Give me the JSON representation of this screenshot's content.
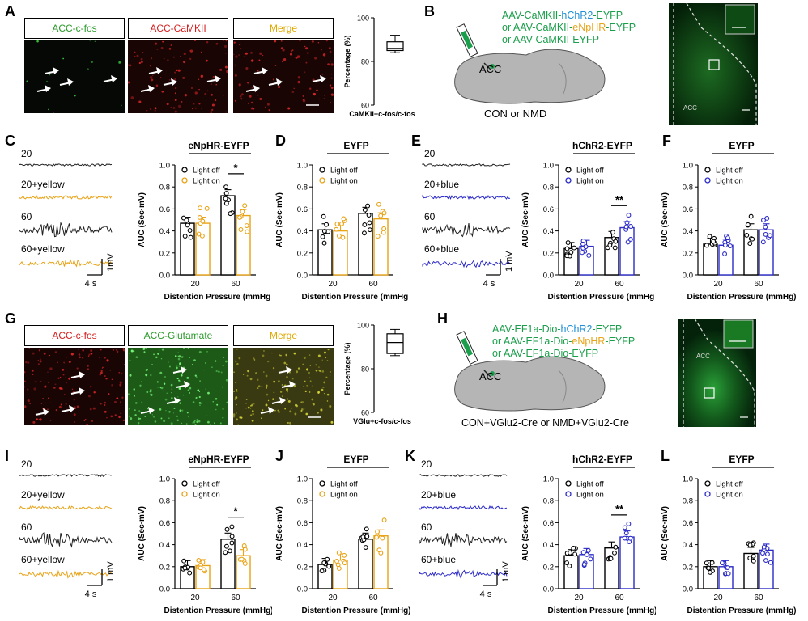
{
  "panels": {
    "A": {
      "letter": "A",
      "headers": [
        "ACC-c-fos",
        "ACC-CaMKII",
        "Merge"
      ],
      "header_colors": [
        "#2a9a2a",
        "#d42020",
        "#e0a800"
      ],
      "box": {
        "ylabel": "Percentage (%)",
        "xlabel": "CaMKII+c-fos/c-fos",
        "ticks": [
          "100",
          "80",
          "60"
        ],
        "ylim": [
          60,
          100
        ],
        "min": 84,
        "q1": 85,
        "median": 86,
        "q3": 89,
        "max": 92
      }
    },
    "B": {
      "letter": "B",
      "virus_lines": [
        {
          "pre": "AAV-CaMKII-",
          "mid": "hChR2",
          "post": "-EYFP",
          "mid_color": "#1e8fd8"
        },
        {
          "pre": "or AAV-CaMKII-",
          "mid": "eNpHR",
          "post": "-EYFP",
          "mid_color": "#e8a317"
        },
        {
          "pre": "or AAV-CaMKII-EYFP",
          "mid": "",
          "post": "",
          "mid_color": "#1b9e4b"
        }
      ],
      "region": "ACC",
      "group": "CON or NMD",
      "slice_label": "ACC"
    },
    "G": {
      "letter": "G",
      "headers": [
        "ACC-c-fos",
        "ACC-Glutamate",
        "Merge"
      ],
      "header_colors": [
        "#d42020",
        "#2a9a2a",
        "#e0a800"
      ],
      "box": {
        "ylabel": "Percentage (%)",
        "xlabel": "VGlu+c-fos/c-fos",
        "ticks": [
          "100",
          "80",
          "60"
        ],
        "ylim": [
          60,
          100
        ],
        "min": 86,
        "q1": 87,
        "median": 92,
        "q3": 96,
        "max": 98
      }
    },
    "H": {
      "letter": "H",
      "virus_lines": [
        {
          "pre": "AAV-EF1a-Dio-",
          "mid": "hChR2",
          "post": "-EYFP",
          "mid_color": "#1e8fd8"
        },
        {
          "pre": "or AAV-EF1a-Dio-",
          "mid": "eNpHR",
          "post": "-EYFP",
          "mid_color": "#e8a317"
        },
        {
          "pre": "or AAV-EF1a-Dio-EYFP",
          "mid": "",
          "post": "",
          "mid_color": "#1b9e4b"
        }
      ],
      "region": "ACC",
      "group": "CON+VGlu2-Cre or NMD+VGlu2-Cre",
      "slice_label": "ACC"
    },
    "traces_top_left": {
      "letter": "C",
      "labels": [
        "20",
        "20+yellow",
        "60",
        "60+yellow"
      ],
      "scale_x": "4 s",
      "scale_y": "1mV"
    },
    "traces_top_right": {
      "letter": "E",
      "labels": [
        "20",
        "20+blue",
        "60",
        "60+blue"
      ],
      "scale_x": "4 s",
      "scale_y": "1 mV"
    },
    "traces_bottom_left": {
      "letter": "I",
      "labels": [
        "20",
        "20+yellow",
        "60",
        "60+yellow"
      ],
      "scale_x": "4 s",
      "scale_y": "1 mV"
    },
    "traces_bottom_right": {
      "letter": "K",
      "labels": [
        "20",
        "20+blue",
        "60",
        "60+blue"
      ],
      "scale_x": "4 s",
      "scale_y": "1 mV"
    },
    "extra_letters": {
      "D": "D",
      "F": "F",
      "J": "J",
      "L": "L"
    }
  },
  "colors": {
    "yellow": "#e8a317",
    "blue": "#2b2bc8",
    "black": "#000000",
    "bar_fill": "#ffffff"
  },
  "chart_data": [
    {
      "id": "C",
      "type": "bar",
      "title": "eNpHR-EYFP",
      "xlabel": "Distention Pressure (mmHg)",
      "ylabel": "AUC (Sec·mV)",
      "categories": [
        "20",
        "60"
      ],
      "ylim": [
        0,
        1.0
      ],
      "yticks": [
        "0.0",
        "0.2",
        "0.4",
        "0.6",
        "0.8",
        "1.0"
      ],
      "series": [
        {
          "name": "Light off",
          "color": "#000000",
          "values": [
            0.47,
            0.72
          ]
        },
        {
          "name": "Light on",
          "color": "#e8a317",
          "values": [
            0.47,
            0.54
          ]
        }
      ],
      "sig": {
        "text": "*",
        "category": 1
      },
      "legend": "top-left"
    },
    {
      "id": "D",
      "type": "bar",
      "title": "EYFP",
      "xlabel": "Distention Pressure (mmHg)",
      "ylabel": "AUC (Sec·mV)",
      "categories": [
        "20",
        "60"
      ],
      "ylim": [
        0,
        1.0
      ],
      "yticks": [
        "0.0",
        "0.2",
        "0.4",
        "0.6",
        "0.8",
        "1.0"
      ],
      "series": [
        {
          "name": "Light off",
          "color": "#000000",
          "values": [
            0.41,
            0.56
          ]
        },
        {
          "name": "Light on",
          "color": "#e8a317",
          "values": [
            0.4,
            0.51
          ]
        }
      ],
      "legend": "top-left"
    },
    {
      "id": "E",
      "type": "bar",
      "title": "hChR2-EYFP",
      "xlabel": "Distention Pressure (mmHg)",
      "ylabel": "AUC (Sec·mV)",
      "categories": [
        "20",
        "60"
      ],
      "ylim": [
        0,
        1.0
      ],
      "yticks": [
        "0.0",
        "0.2",
        "0.4",
        "0.6",
        "0.8",
        "1.0"
      ],
      "series": [
        {
          "name": "Light off",
          "color": "#000000",
          "values": [
            0.24,
            0.34
          ]
        },
        {
          "name": "Light on",
          "color": "#2b2bc8",
          "values": [
            0.26,
            0.43
          ]
        }
      ],
      "sig": {
        "text": "**",
        "category": 1
      },
      "legend": "top-left"
    },
    {
      "id": "F",
      "type": "bar",
      "title": "EYFP",
      "xlabel": "Distention Pressure (mmHg)",
      "ylabel": "AUC (Sec·mV)",
      "categories": [
        "20",
        "60"
      ],
      "ylim": [
        0,
        1.0
      ],
      "yticks": [
        "0.0",
        "0.2",
        "0.4",
        "0.6",
        "0.8",
        "1.0"
      ],
      "series": [
        {
          "name": "Light off",
          "color": "#000000",
          "values": [
            0.28,
            0.41
          ]
        },
        {
          "name": "Light on",
          "color": "#2b2bc8",
          "values": [
            0.27,
            0.41
          ]
        }
      ],
      "legend": "top-left"
    },
    {
      "id": "I",
      "type": "bar",
      "title": "eNpHR-EYFP",
      "xlabel": "Distention Pressure (mmHg)",
      "ylabel": "AUC (Sec·mV)",
      "categories": [
        "20",
        "60"
      ],
      "ylim": [
        0,
        1.0
      ],
      "yticks": [
        "0.0",
        "0.2",
        "0.4",
        "0.6",
        "0.8",
        "1.0"
      ],
      "series": [
        {
          "name": "Light off",
          "color": "#000000",
          "values": [
            0.2,
            0.45
          ]
        },
        {
          "name": "Light on",
          "color": "#e8a317",
          "values": [
            0.21,
            0.3
          ]
        }
      ],
      "sig": {
        "text": "*",
        "category": 1
      },
      "legend": "top-left"
    },
    {
      "id": "J",
      "type": "bar",
      "title": "EYFP",
      "xlabel": "Distention Pressure (mmHg)",
      "ylabel": "AUC (Sec·mV)",
      "categories": [
        "20",
        "60"
      ],
      "ylim": [
        0,
        1.0
      ],
      "yticks": [
        "0.0",
        "0.2",
        "0.4",
        "0.6",
        "0.8",
        "1.0"
      ],
      "series": [
        {
          "name": "Light off",
          "color": "#000000",
          "values": [
            0.22,
            0.45
          ]
        },
        {
          "name": "Light on",
          "color": "#e8a317",
          "values": [
            0.26,
            0.48
          ]
        }
      ],
      "legend": "top-left"
    },
    {
      "id": "K",
      "type": "bar",
      "title": "hChR2-EYFP",
      "xlabel": "Distention Pressure (mmHg)",
      "ylabel": "AUC (Sec·mV)",
      "categories": [
        "20",
        "60"
      ],
      "ylim": [
        0,
        1.0
      ],
      "yticks": [
        "0.0",
        "0.2",
        "0.4",
        "0.6",
        "0.8",
        "1.0"
      ],
      "series": [
        {
          "name": "Light off",
          "color": "#000000",
          "values": [
            0.3,
            0.37
          ]
        },
        {
          "name": "Light on",
          "color": "#2b2bc8",
          "values": [
            0.31,
            0.47
          ]
        }
      ],
      "sig": {
        "text": "**",
        "category": 1
      },
      "legend": "top-left"
    },
    {
      "id": "L",
      "type": "bar",
      "title": "EYFP",
      "xlabel": "Distention Pressure (mmHg)",
      "ylabel": "AUC (Sec·mV)",
      "categories": [
        "20",
        "60"
      ],
      "ylim": [
        0,
        1.0
      ],
      "yticks": [
        "0.0",
        "0.2",
        "0.4",
        "0.6",
        "0.8",
        "1.0"
      ],
      "series": [
        {
          "name": "Light off",
          "color": "#000000",
          "values": [
            0.2,
            0.32
          ]
        },
        {
          "name": "Light on",
          "color": "#2b2bc8",
          "values": [
            0.2,
            0.35
          ]
        }
      ],
      "legend": "top-left"
    }
  ]
}
